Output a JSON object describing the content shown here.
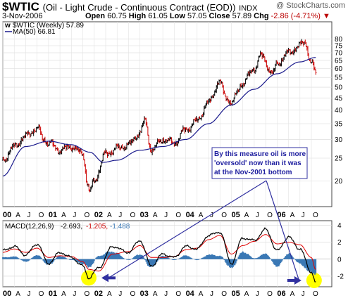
{
  "header": {
    "symbol": "$WTIC",
    "name": "(Oil - Light Crude - Continuous Contract (EOD))",
    "exchange": "INDX",
    "watermark": "@ StockCharts.com",
    "date": "3-Nov-2006",
    "open_label": "Open",
    "open": "60.75",
    "high_label": "High",
    "high": "61.05",
    "low_label": "Low",
    "low": "57.05",
    "close_label": "Close",
    "close": "57.89",
    "chg_label": "Chg",
    "chg": "-2.86 (-4.71%)",
    "chg_arrow": "▼"
  },
  "legend": {
    "price_entry": "$WTIC (Weekly) 57.89",
    "ma_entry": "MA(50) 66.81",
    "macd_name": "MACD(12,26,9)",
    "macd_v1": "-2.693,",
    "macd_v2": "-1.205,",
    "macd_v3": "-1.488"
  },
  "annotation": {
    "line1": "By this measure oil is more",
    "line2": "'oversold' now than it was",
    "line3": "at the Nov-2001 bottom"
  },
  "colors": {
    "price_up": "#000000",
    "price_down": "#cc0000",
    "ma": "#1a1a8c",
    "macd_line": "#000000",
    "signal_line": "#e00000",
    "histogram": "#3a78b5",
    "annotation_arrow": "#3030a0",
    "highlight": "#ffff00"
  },
  "chart_data": [
    {
      "type": "line",
      "series": [
        {
          "name": "$WTIC (Weekly)",
          "x": [
            2000.0,
            2000.25,
            2000.5,
            2000.75,
            2000.9,
            2001.0,
            2001.25,
            2001.5,
            2001.75,
            2001.85,
            2001.9,
            2002.0,
            2002.25,
            2002.5,
            2002.75,
            2003.0,
            2003.1,
            2003.25,
            2003.5,
            2003.75,
            2004.0,
            2004.25,
            2004.5,
            2004.75,
            2004.85,
            2005.0,
            2005.25,
            2005.5,
            2005.65,
            2005.9,
            2006.0,
            2006.25,
            2006.5,
            2006.6,
            2006.75,
            2006.84
          ],
          "y": [
            24.5,
            28,
            31,
            33.5,
            30,
            29,
            27,
            28,
            26,
            19.5,
            18,
            20,
            26,
            27.5,
            28.5,
            32,
            36,
            27,
            30,
            29,
            33,
            36,
            43,
            53,
            46,
            43,
            52,
            60,
            68,
            57,
            63,
            70,
            75,
            78,
            63,
            57.89
          ]
        },
        {
          "name": "MA(50)",
          "x": [
            2000.0,
            2000.5,
            2001.0,
            2001.5,
            2001.9,
            2002.2,
            2002.5,
            2003.0,
            2003.5,
            2004.0,
            2004.5,
            2005.0,
            2005.5,
            2006.0,
            2006.5,
            2006.84
          ],
          "y": [
            21,
            28,
            29.5,
            28.5,
            26.5,
            24,
            24.5,
            27,
            28,
            30,
            35,
            42,
            49,
            57,
            64,
            66.81
          ]
        }
      ],
      "xlabels": [
        "00",
        "A",
        "J",
        "O",
        "01",
        "A",
        "J",
        "O",
        "02",
        "A",
        "J",
        "O",
        "03",
        "A",
        "J",
        "O",
        "04",
        "A",
        "J",
        "O",
        "05",
        "A",
        "J",
        "O",
        "06",
        "A",
        "J",
        "O"
      ],
      "y_ticks": [
        20,
        25,
        30,
        35,
        40,
        45,
        50,
        55,
        60,
        65,
        70,
        75,
        80
      ],
      "ylim": [
        16,
        82
      ],
      "y_scale": "log",
      "grid": true
    },
    {
      "type": "line",
      "series": [
        {
          "name": "MACD",
          "x": [
            2000.0,
            2000.25,
            2000.5,
            2000.75,
            2001.0,
            2001.25,
            2001.5,
            2001.75,
            2001.88,
            2002.1,
            2002.4,
            2002.75,
            2003.0,
            2003.25,
            2003.5,
            2003.75,
            2004.0,
            2004.25,
            2004.5,
            2004.75,
            2005.0,
            2005.25,
            2005.5,
            2005.75,
            2006.0,
            2006.25,
            2006.5,
            2006.75,
            2006.84
          ],
          "y": [
            1.0,
            1.5,
            0.5,
            1.8,
            -0.5,
            0.8,
            0.2,
            -0.8,
            -2.2,
            -1.0,
            1.5,
            0.8,
            2.2,
            -0.8,
            0.6,
            0.2,
            1.5,
            1.2,
            2.8,
            3.2,
            -0.5,
            2.5,
            2.2,
            3.5,
            1.0,
            2.6,
            1.2,
            -1.5,
            -2.693
          ]
        },
        {
          "name": "Signal",
          "x": [
            2000.0,
            2000.25,
            2000.5,
            2000.75,
            2001.0,
            2001.25,
            2001.5,
            2001.75,
            2001.88,
            2002.1,
            2002.4,
            2002.75,
            2003.0,
            2003.25,
            2003.5,
            2003.75,
            2004.0,
            2004.25,
            2004.5,
            2004.75,
            2005.0,
            2005.25,
            2005.5,
            2005.75,
            2006.0,
            2006.25,
            2006.5,
            2006.75,
            2006.84
          ],
          "y": [
            0.8,
            1.2,
            0.8,
            1.3,
            0.2,
            0.4,
            0.3,
            -0.3,
            -1.2,
            -1.4,
            0.6,
            0.9,
            1.6,
            0.2,
            0.2,
            0.3,
            1.1,
            1.3,
            2.3,
            2.8,
            0.6,
            1.6,
            2.1,
            2.9,
            1.8,
            2.0,
            1.7,
            0.2,
            -1.205
          ]
        },
        {
          "name": "Histogram",
          "x": [
            2000.0,
            2000.25,
            2000.5,
            2000.75,
            2001.0,
            2001.25,
            2001.5,
            2001.75,
            2001.88,
            2002.1,
            2002.4,
            2002.75,
            2003.0,
            2003.25,
            2003.5,
            2003.75,
            2004.0,
            2004.25,
            2004.5,
            2004.75,
            2005.0,
            2005.25,
            2005.5,
            2005.75,
            2006.0,
            2006.25,
            2006.5,
            2006.75,
            2006.84
          ],
          "y": [
            0.2,
            0.3,
            -0.3,
            0.5,
            -0.7,
            0.4,
            -0.1,
            -0.5,
            -1.0,
            0.4,
            0.9,
            -0.1,
            0.6,
            -1.0,
            0.4,
            -0.1,
            0.4,
            -0.1,
            0.5,
            0.4,
            -1.1,
            0.9,
            0.1,
            0.6,
            -0.8,
            0.6,
            -0.5,
            -1.7,
            -1.488
          ]
        }
      ],
      "y_ticks": [
        -2,
        0,
        2,
        4
      ],
      "ylim": [
        -3,
        4.2
      ],
      "grid": true
    }
  ]
}
